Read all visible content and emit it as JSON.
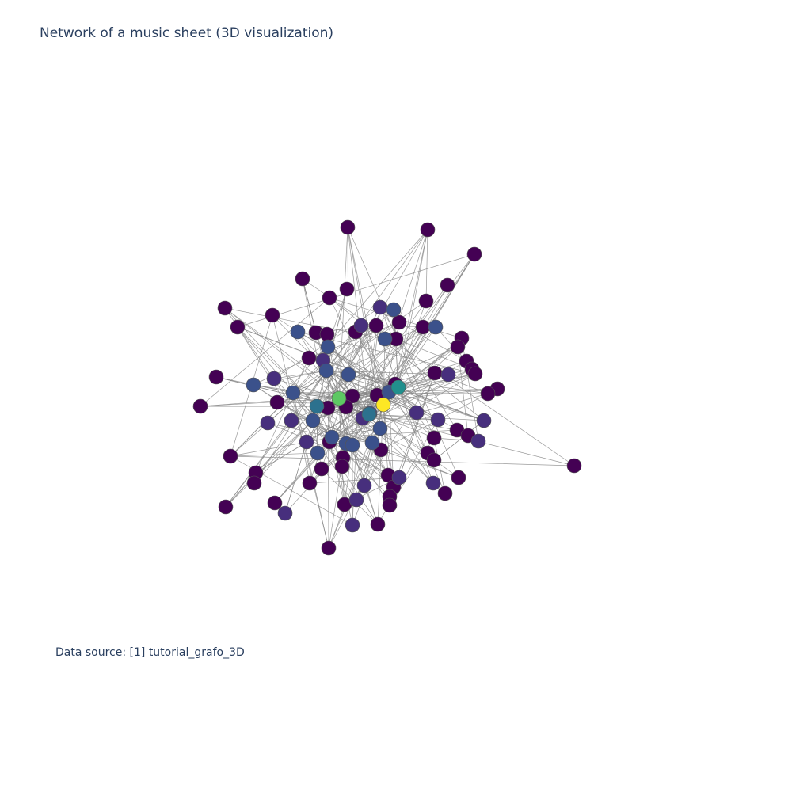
{
  "title": "Network of a music sheet (3D visualization)",
  "source": "Data source: [1] tutorial_grafo_3D",
  "colors": {
    "low": "#440154",
    "midlow": "#472f7d",
    "mid": "#3b518b",
    "midhigh": "#2c718e",
    "teal": "#21908d",
    "green": "#5dc863",
    "yellow": "#fde725",
    "edge": "#888888",
    "text": "#2a3f5f"
  }
}
